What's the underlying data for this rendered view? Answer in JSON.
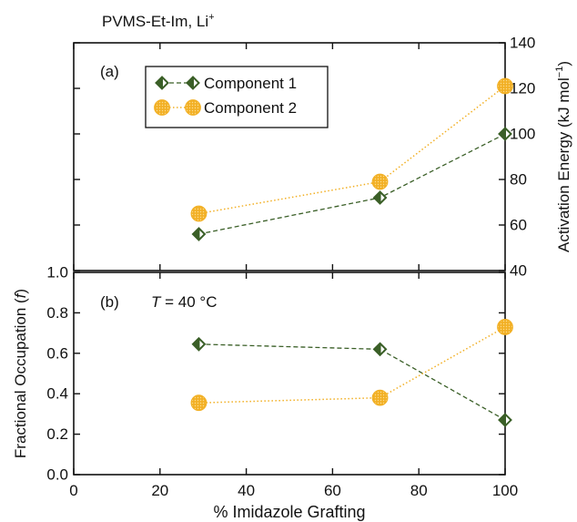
{
  "figure_title": "PVMS-Et-Im, Li",
  "figure_title_sup": "+",
  "x_axis": {
    "label": "% Imidazole Grafting",
    "range": [
      0,
      100
    ],
    "ticks": [
      0,
      20,
      40,
      60,
      80,
      100
    ]
  },
  "legend": {
    "placement": "upper-left of panel (a)",
    "entries": [
      "Component 1",
      "Component 2"
    ]
  },
  "colors": {
    "component1": "#3a5f27",
    "component2": "#f2b025",
    "axes": "#111111"
  },
  "chart_data": [
    {
      "type": "line",
      "panel_label": "(a)",
      "ylabel_main": "Activation Energy (kJ mol",
      "ylabel_sup": "−1",
      "ylabel_close": ")",
      "y_axis_side": "right",
      "ylim": [
        40,
        140
      ],
      "yticks": [
        40,
        60,
        80,
        100,
        120,
        140
      ],
      "x": [
        29,
        71,
        100
      ],
      "series": [
        {
          "name": "Component 1",
          "marker": "half-filled diamond",
          "line": "dashed",
          "values": [
            56,
            72,
            100
          ]
        },
        {
          "name": "Component 2",
          "marker": "hatched circle",
          "line": "dotted",
          "values": [
            65,
            79,
            121
          ]
        }
      ]
    },
    {
      "type": "line",
      "panel_label": "(b)",
      "annotation_var": "T",
      "annotation_rest": " = 40 °C",
      "ylabel_main": "Fractional Occupation (",
      "ylabel_var": "f",
      "ylabel_close": ")",
      "y_axis_side": "left",
      "ylim": [
        0,
        1
      ],
      "yticks": [
        "0.0",
        "0.2",
        "0.4",
        "0.6",
        "0.8",
        "1.0"
      ],
      "x": [
        29,
        71,
        100
      ],
      "series": [
        {
          "name": "Component 1",
          "marker": "half-filled diamond",
          "line": "dashed",
          "values": [
            0.645,
            0.62,
            0.27
          ]
        },
        {
          "name": "Component 2",
          "marker": "hatched circle",
          "line": "dotted",
          "values": [
            0.355,
            0.38,
            0.73
          ]
        }
      ]
    }
  ]
}
